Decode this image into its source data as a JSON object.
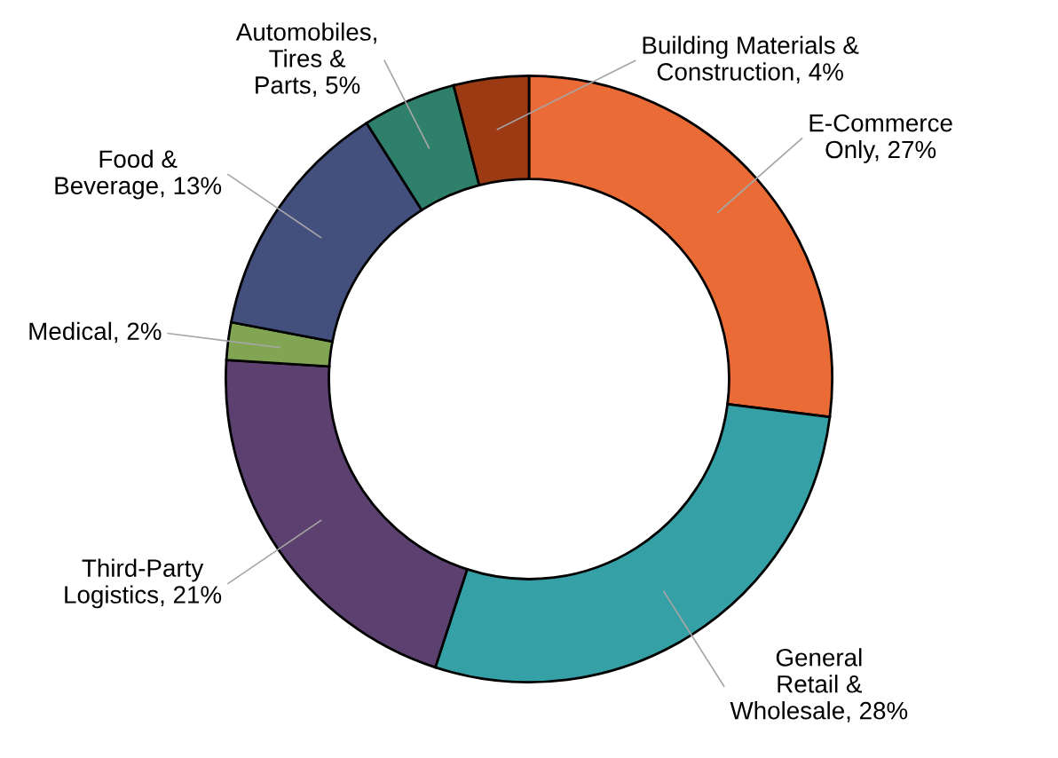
{
  "chart_data": {
    "type": "donut",
    "categories": [
      "E-Commerce\nOnly",
      "General\nRetail &\nWholesale",
      "Third-Party\nLogistics",
      "Medical",
      "Food &\nBeverage",
      "Automobiles,\nTires &\nParts",
      "Building Materials &\nConstruction"
    ],
    "values": [
      27,
      28,
      21,
      2,
      13,
      5,
      4
    ],
    "value_labels": [
      "27%",
      "28%",
      "21%",
      "2%",
      "13%",
      "5%",
      "4%"
    ],
    "colors": [
      "#ea6b35",
      "#35a0a5",
      "#5c4070",
      "#82a553",
      "#43507e",
      "#2e806b",
      "#9b3a13"
    ],
    "legend": false
  }
}
